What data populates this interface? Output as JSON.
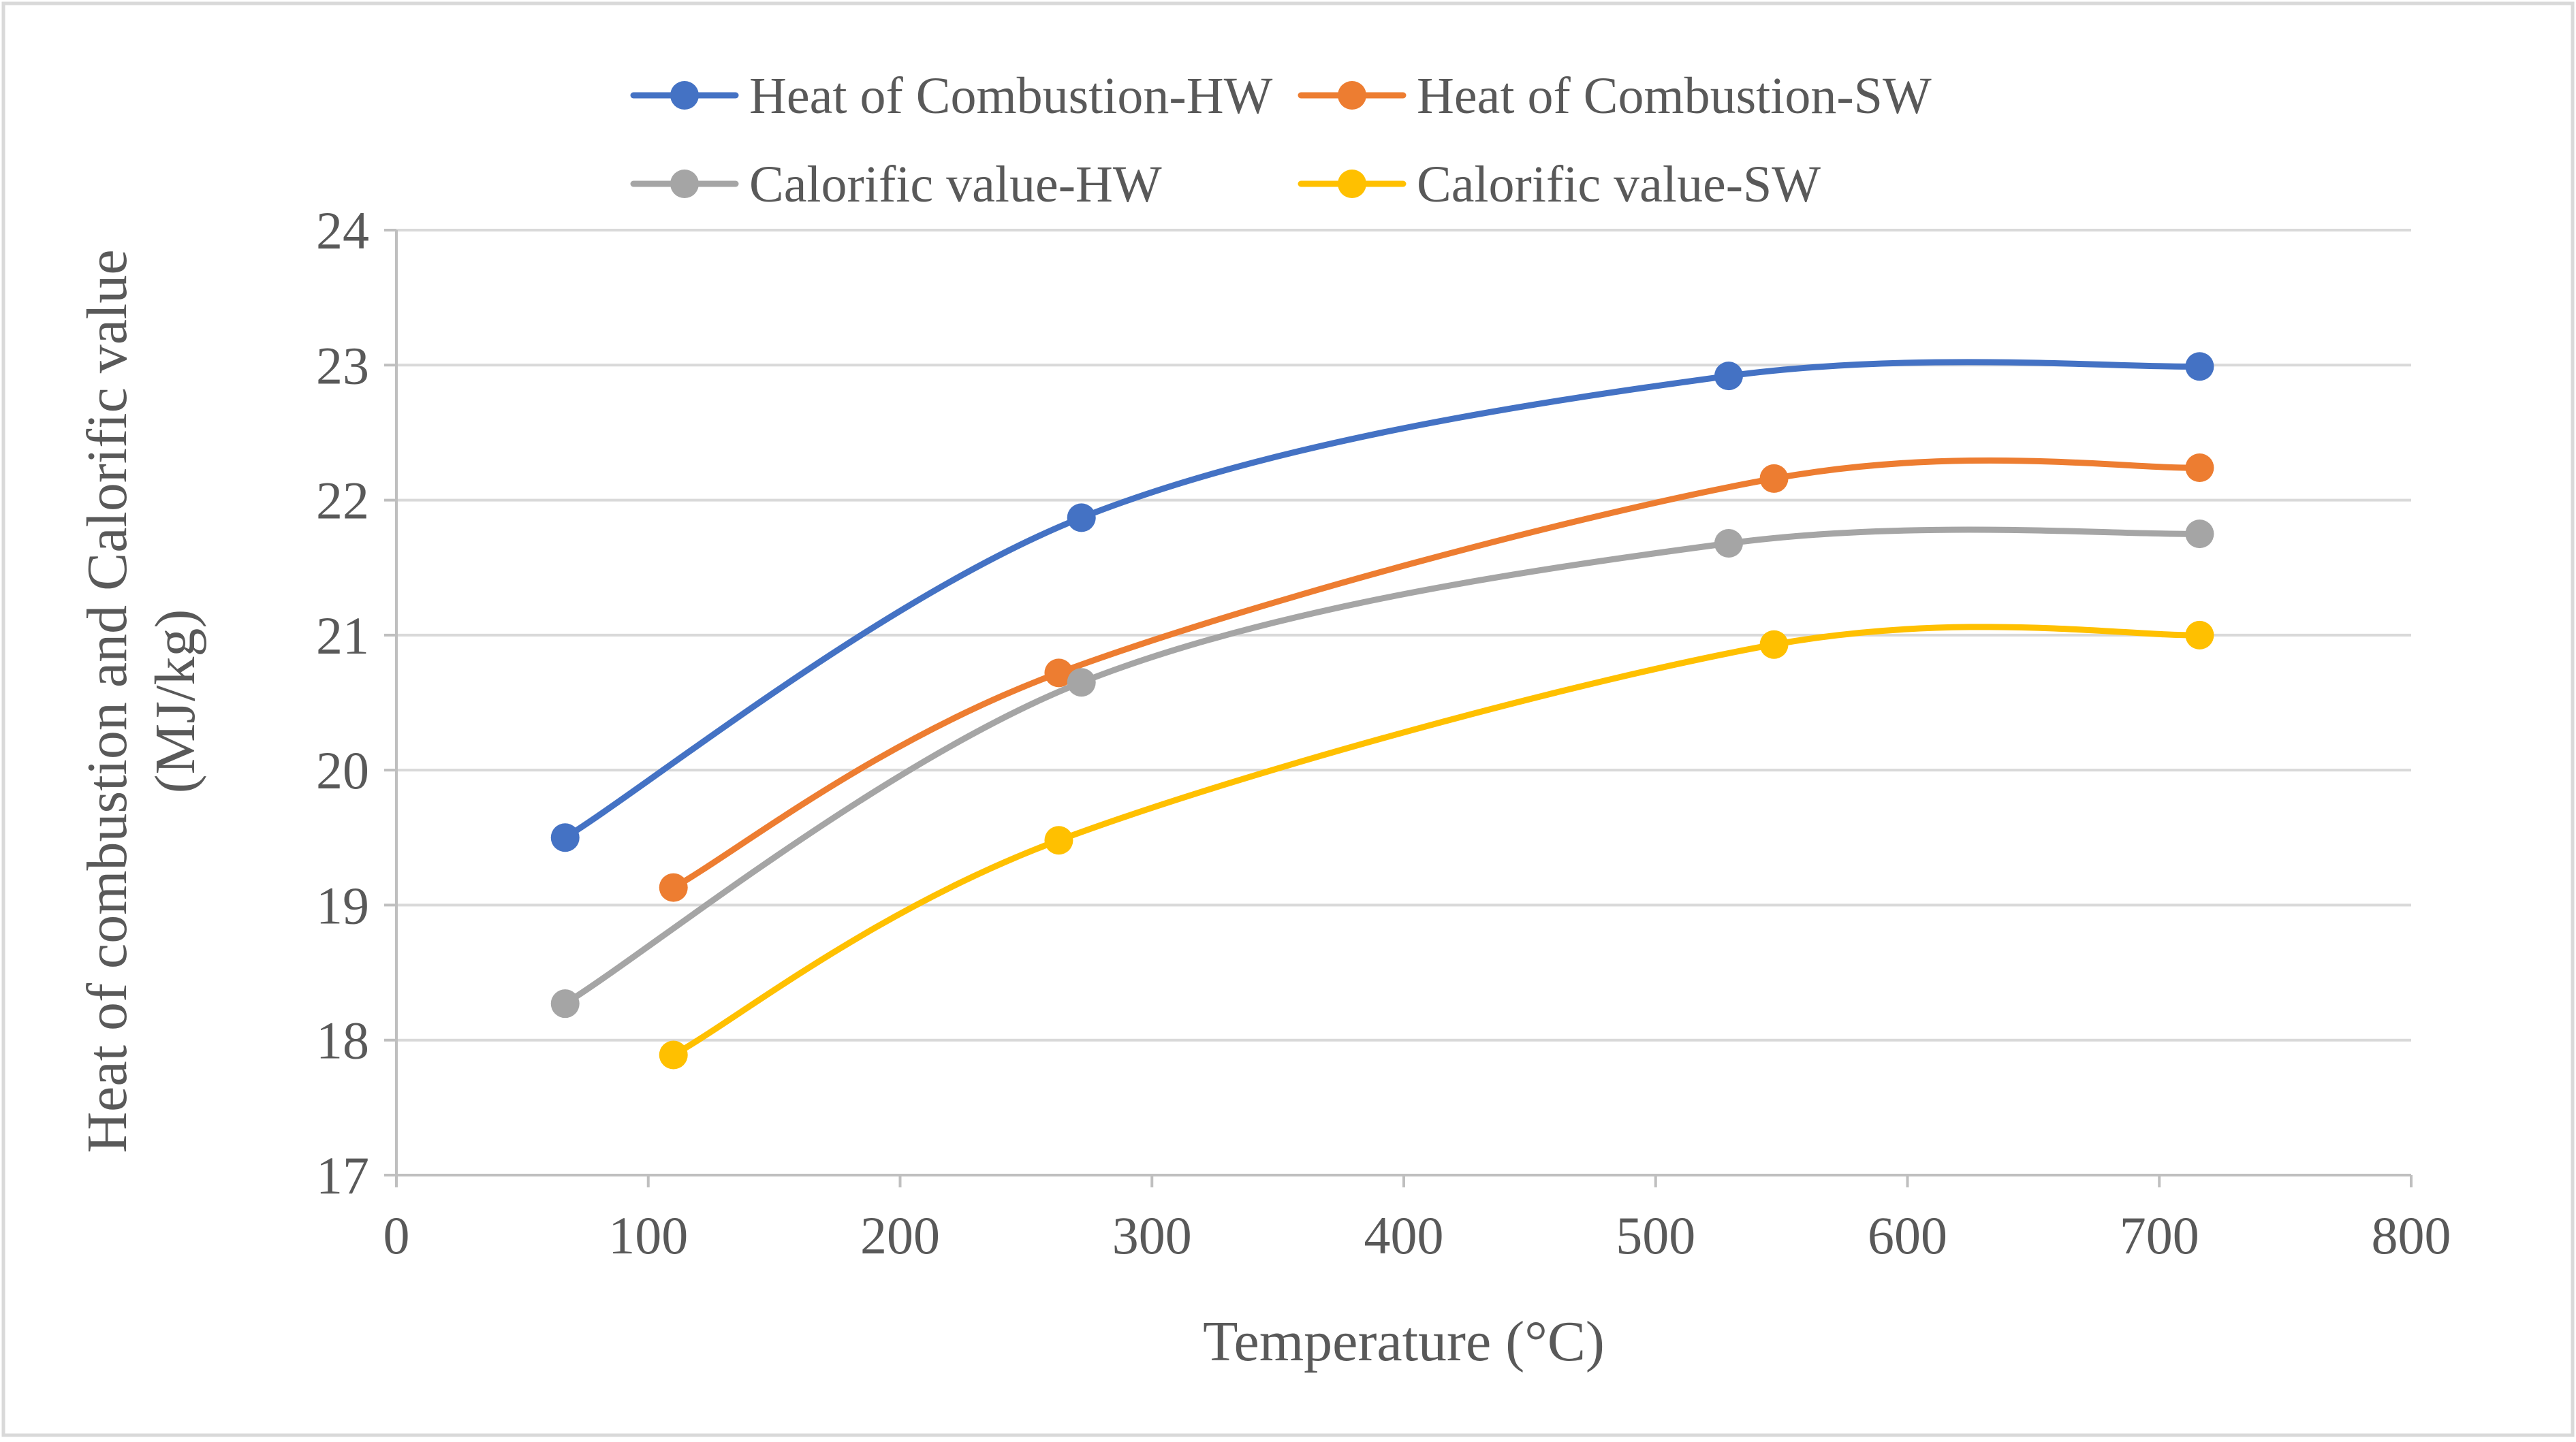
{
  "chart_data": {
    "type": "line",
    "xlabel": "Temperature (°C)",
    "ylabel_lines": [
      "Heat of combustion and Calorific value",
      "(MJ/kg)"
    ],
    "xlim": [
      0,
      800
    ],
    "ylim": [
      17,
      24
    ],
    "x_ticks": [
      0,
      100,
      200,
      300,
      400,
      500,
      600,
      700,
      800
    ],
    "y_ticks": [
      17,
      18,
      19,
      20,
      21,
      22,
      23,
      24
    ],
    "grid": "horizontal",
    "legend_position": "top",
    "smooth": true,
    "series": [
      {
        "name": "Heat of Combustion-HW",
        "color": "#4472C4",
        "x": [
          67,
          272,
          529,
          716
        ],
        "y": [
          19.5,
          21.87,
          22.92,
          22.99
        ]
      },
      {
        "name": "Heat of Combustion-SW",
        "color": "#ED7D31",
        "x": [
          110,
          263,
          547,
          716
        ],
        "y": [
          19.13,
          20.72,
          22.16,
          22.24
        ]
      },
      {
        "name": "Calorific value-HW",
        "color": "#A5A5A5",
        "x": [
          67,
          272,
          529,
          716
        ],
        "y": [
          18.27,
          20.65,
          21.68,
          21.75
        ]
      },
      {
        "name": "Calorific value-SW",
        "color": "#FFC000",
        "x": [
          110,
          263,
          547,
          716
        ],
        "y": [
          17.89,
          19.48,
          20.93,
          21.0
        ]
      }
    ]
  }
}
